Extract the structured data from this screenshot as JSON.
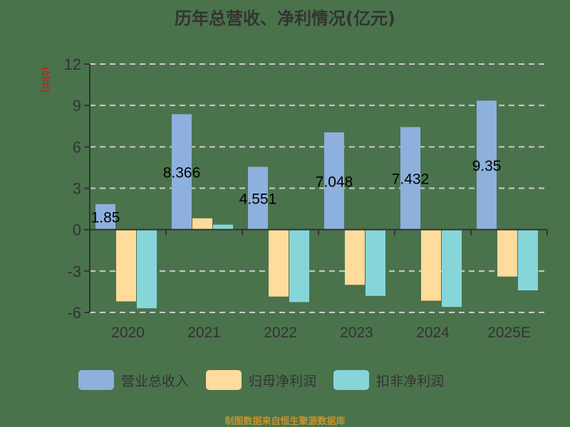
{
  "title": "历年总营收、净利情况(亿元)",
  "unit_label": "(亿元)",
  "footer": "制图数据来自恒生聚源数据库",
  "colors": {
    "revenue": "#8eb0dd",
    "net_profit": "#ffdb9c",
    "deducted_profit": "#86d6d9",
    "axis": "#333333",
    "grid": "#cccccc"
  },
  "legend": [
    {
      "label": "营业总收入",
      "color": "#8eb0dd"
    },
    {
      "label": "归母净利润",
      "color": "#ffdb9c"
    },
    {
      "label": "扣非净利润",
      "color": "#86d6d9"
    }
  ],
  "chart_data": {
    "type": "bar",
    "title": "历年总营收、净利情况(亿元)",
    "xlabel": "",
    "ylabel": "(亿元)",
    "ylim": [
      -6,
      12
    ],
    "yticks": [
      12,
      9,
      6,
      3,
      0,
      -3,
      -6
    ],
    "grid": true,
    "legend_position": "bottom",
    "categories": [
      "2020",
      "2021",
      "2022",
      "2023",
      "2024",
      "2025E"
    ],
    "series": [
      {
        "name": "营业总收入",
        "values": [
          1.85,
          8.366,
          4.551,
          7.048,
          7.432,
          9.35
        ],
        "labels": [
          "1.85",
          "8.366",
          "4.551",
          "7.048",
          "7.432",
          "9.35"
        ]
      },
      {
        "name": "归母净利润",
        "values": [
          -5.2,
          0.82,
          -4.85,
          -4.0,
          -5.15,
          -3.4
        ]
      },
      {
        "name": "扣非净利润",
        "values": [
          -5.7,
          0.36,
          -5.25,
          -4.8,
          -5.6,
          -4.4
        ]
      }
    ]
  }
}
